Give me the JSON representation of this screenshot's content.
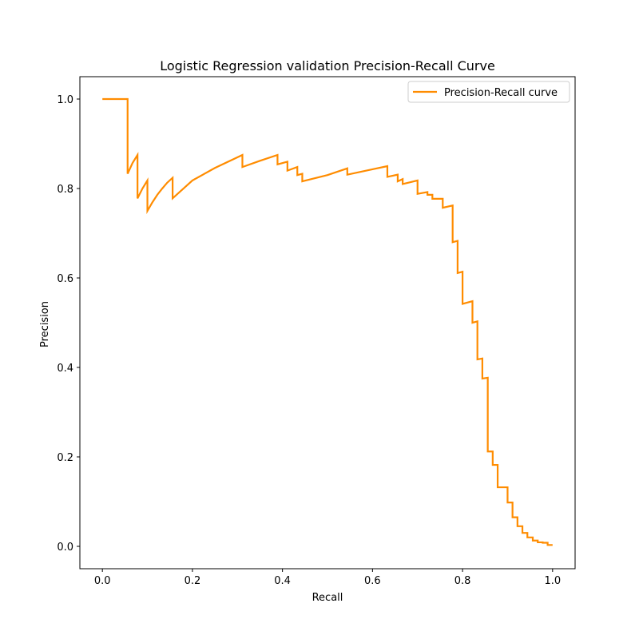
{
  "chart_data": {
    "type": "line",
    "title": "Logistic Regression validation Precision-Recall Curve",
    "xlabel": "Recall",
    "ylabel": "Precision",
    "xlim": [
      -0.05,
      1.05
    ],
    "ylim": [
      -0.05,
      1.05
    ],
    "xticks": [
      0.0,
      0.2,
      0.4,
      0.6,
      0.8,
      1.0
    ],
    "xtick_labels": [
      "0.0",
      "0.2",
      "0.4",
      "0.6",
      "0.8",
      "1.0"
    ],
    "yticks": [
      0.0,
      0.2,
      0.4,
      0.6,
      0.8,
      1.0
    ],
    "ytick_labels": [
      "0.0",
      "0.2",
      "0.4",
      "0.6",
      "0.8",
      "1.0"
    ],
    "grid": false,
    "legend_position": "upper-right",
    "series": [
      {
        "name": "Precision-Recall curve",
        "color": "#ff8c00",
        "x": [
          0.0,
          0.056,
          0.056,
          0.067,
          0.078,
          0.078,
          0.089,
          0.1,
          0.1,
          0.111,
          0.122,
          0.133,
          0.144,
          0.156,
          0.156,
          0.2,
          0.25,
          0.311,
          0.311,
          0.35,
          0.389,
          0.389,
          0.411,
          0.411,
          0.433,
          0.433,
          0.444,
          0.444,
          0.5,
          0.544,
          0.544,
          0.6,
          0.633,
          0.633,
          0.656,
          0.656,
          0.667,
          0.667,
          0.7,
          0.7,
          0.722,
          0.722,
          0.733,
          0.733,
          0.756,
          0.756,
          0.778,
          0.778,
          0.789,
          0.789,
          0.8,
          0.8,
          0.822,
          0.822,
          0.833,
          0.833,
          0.844,
          0.844,
          0.856,
          0.856,
          0.867,
          0.867,
          0.878,
          0.878,
          0.9,
          0.9,
          0.911,
          0.911,
          0.922,
          0.922,
          0.933,
          0.933,
          0.944,
          0.944,
          0.956,
          0.956,
          0.967,
          0.967,
          0.978,
          0.978,
          0.989,
          0.989,
          1.0
        ],
        "y": [
          1.0,
          1.0,
          0.833,
          0.857,
          0.875,
          0.778,
          0.8,
          0.818,
          0.75,
          0.769,
          0.786,
          0.8,
          0.813,
          0.824,
          0.778,
          0.818,
          0.846,
          0.875,
          0.848,
          0.862,
          0.875,
          0.854,
          0.86,
          0.84,
          0.848,
          0.83,
          0.833,
          0.816,
          0.83,
          0.845,
          0.831,
          0.843,
          0.85,
          0.826,
          0.831,
          0.816,
          0.821,
          0.81,
          0.818,
          0.788,
          0.792,
          0.786,
          0.786,
          0.777,
          0.777,
          0.757,
          0.762,
          0.68,
          0.683,
          0.611,
          0.614,
          0.542,
          0.548,
          0.5,
          0.503,
          0.418,
          0.42,
          0.375,
          0.377,
          0.212,
          0.212,
          0.182,
          0.182,
          0.132,
          0.132,
          0.098,
          0.098,
          0.065,
          0.065,
          0.045,
          0.045,
          0.03,
          0.03,
          0.02,
          0.02,
          0.013,
          0.013,
          0.009,
          0.009,
          0.008,
          0.008,
          0.003,
          0.003
        ]
      }
    ]
  }
}
